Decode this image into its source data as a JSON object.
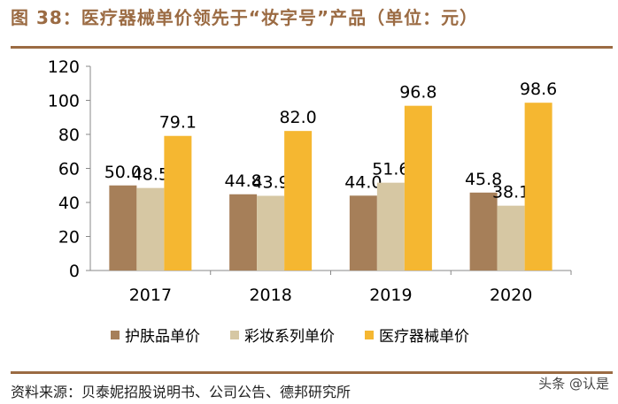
{
  "title": "图 38：医疗器械单价领先于“妆字号”产品（单位：元）",
  "source": "资料来源：贝泰妮招股说明书、公司公告、德邦研究所",
  "watermark": "头条 @认是",
  "chart_data": {
    "type": "bar",
    "categories": [
      "2017",
      "2018",
      "2019",
      "2020"
    ],
    "series": [
      {
        "name": "护肤品单价",
        "values": [
          50.0,
          44.8,
          44.0,
          45.8
        ],
        "color": "#a67f59"
      },
      {
        "name": "彩妆系列单价",
        "values": [
          48.5,
          43.9,
          51.6,
          38.1
        ],
        "color": "#d6c7a3"
      },
      {
        "name": "医疗器械单价",
        "values": [
          79.1,
          82.0,
          96.8,
          98.6
        ],
        "color": "#f5b731"
      }
    ],
    "yticks": [
      0,
      20,
      40,
      60,
      80,
      100,
      120
    ],
    "ylim": [
      0,
      120
    ],
    "grid": false,
    "legend": "bottom"
  }
}
